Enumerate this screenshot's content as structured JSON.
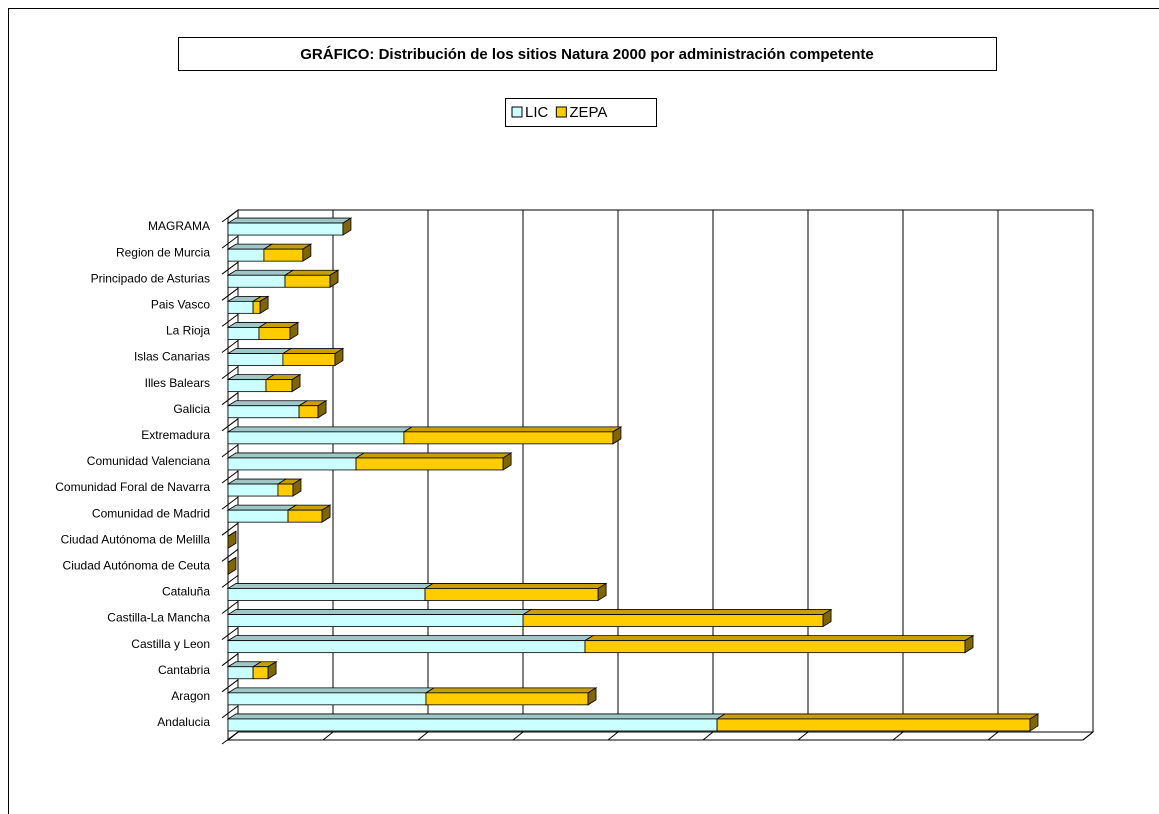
{
  "chart_data": {
    "type": "bar",
    "orientation": "horizontal",
    "stacked": true,
    "title": "GRÁFICO: Distribución de los sitios  Natura 2000 por administración competente",
    "categories": [
      "Andalucia",
      "Aragon",
      "Cantabria",
      "Castilla y Leon",
      "Castilla-La Mancha",
      "Cataluña",
      "Ciudad Autónoma de Ceuta",
      "Ciudad Autónoma de Melilla",
      "Comunidad de Madrid",
      "Comunidad Foral de Navarra",
      "Comunidad Valenciana",
      "Extremadura",
      "Galicia",
      "Illes Balears",
      "Islas Canarias",
      "La Rioja",
      "Pais Vasco",
      "Principado de Asturias",
      "Region de Murcia",
      "MAGRAMA"
    ],
    "series": [
      {
        "name": "LIC",
        "color": "#ccffff",
        "values": [
          2574,
          1042,
          132,
          1879,
          1553,
          1037,
          0,
          0,
          316,
          263,
          674,
          926,
          374,
          200,
          289,
          163,
          132,
          300,
          189,
          605
        ]
      },
      {
        "name": "ZEPA",
        "color": "#ffcc00",
        "values": [
          1647,
          853,
          79,
          2000,
          1579,
          911,
          0,
          0,
          179,
          79,
          774,
          1100,
          100,
          137,
          274,
          163,
          37,
          237,
          205,
          0
        ]
      }
    ],
    "xlim": [
      0,
      4500
    ],
    "xticks": [
      0,
      500,
      1000,
      1500,
      2000,
      2500,
      3000,
      3500,
      4000,
      4500
    ],
    "grid": true,
    "legend": "top"
  }
}
